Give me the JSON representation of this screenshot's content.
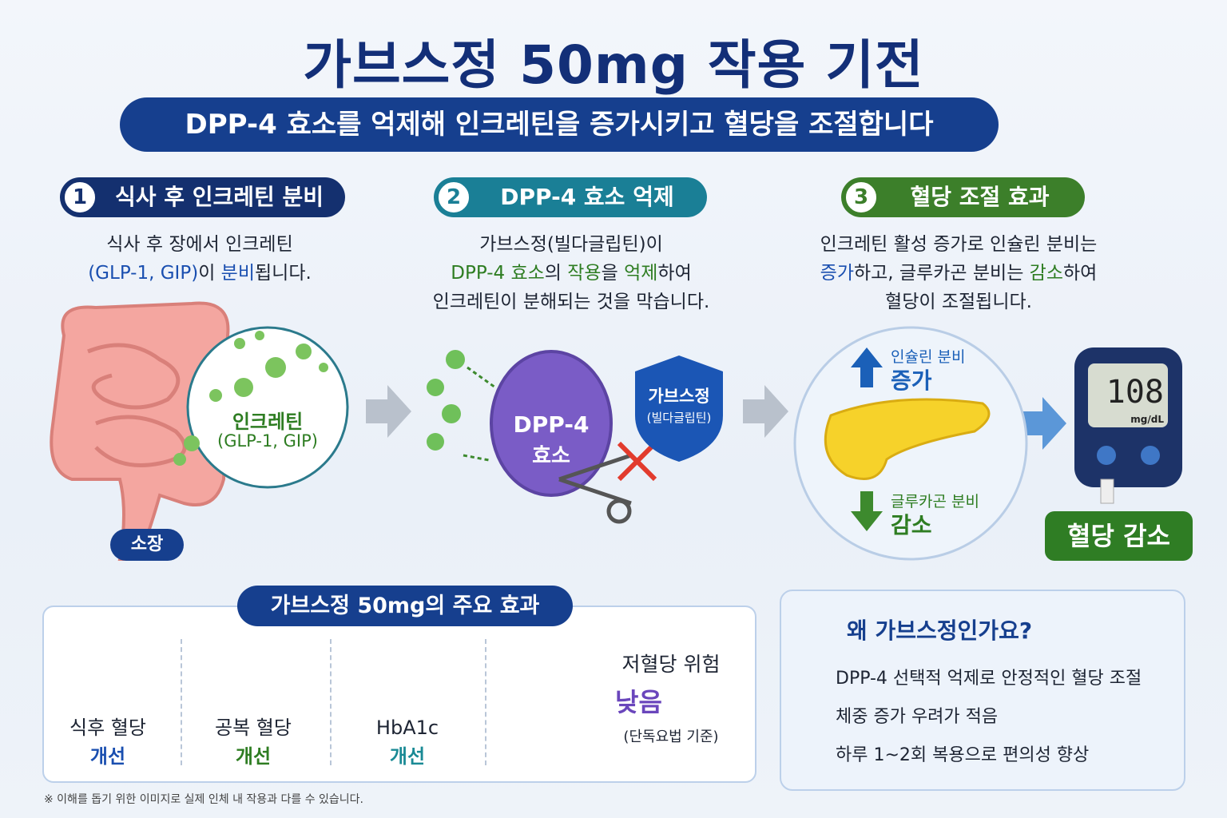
{
  "title": "가브스정 50mg 작용 기전",
  "subtitle": "DPP-4 효소를 억제해 인크레틴을 증가시키고 혈당을 조절합니다",
  "steps": [
    {
      "number": "1",
      "title": "식사 후 인크레틴 분비",
      "description": [
        [
          "식사 후 장에서 인크레틴"
        ],
        [
          "(GLP-1, GIP)",
          "이 ",
          "분비",
          "됩니다."
        ]
      ],
      "labels": [
        "인크레틴",
        "(GLP-1, GIP)",
        "소장"
      ]
    },
    {
      "number": "2",
      "title": "DPP-4 효소 억제",
      "description": [
        [
          "가브스정(빌다글립틴)이"
        ],
        [
          "DPP-4 효소",
          "의 ",
          "작용",
          "을 ",
          "억제",
          "하여"
        ],
        [
          "인크레틴이 분해되는 것을 막습니다."
        ]
      ],
      "labels": [
        "DPP-4",
        "효소",
        "가브스정",
        "(빌다글립틴)"
      ]
    },
    {
      "number": "3",
      "title": "혈당 조절 효과",
      "description": [
        [
          "인크레틴 활성 증가로 인슐린 분비는"
        ],
        [
          "증가",
          "하고, 글루카곤 분비는 ",
          "감소",
          "하여"
        ],
        [
          "혈당이 조절됩니다."
        ]
      ],
      "labels": [
        "인슐린 분비",
        "증가",
        "글루카곤 분비",
        "감소",
        "108",
        "mg/dL",
        "혈당 감소"
      ]
    }
  ],
  "effects": {
    "title": "가브스정 50mg의 주요 효과",
    "items": [
      [
        "식후 혈당",
        "개선"
      ],
      [
        "공복 혈당",
        "개선"
      ],
      [
        "HbA1c",
        "개선"
      ],
      [
        "저혈당 위험",
        "낮음",
        "(단독요법 기준)"
      ]
    ]
  },
  "why": {
    "title": "왜 가브스정인가요?",
    "points": [
      "DPP-4 선택적 억제로 안정적인 혈당 조절",
      "체중 증가 우려가 적음",
      "하루 1~2회 복용으로 편의성 향상"
    ]
  },
  "footnote": "※ 이해를 돕기 위한 이미지로 실제 인체 내 작용과 다를 수 있습니다."
}
